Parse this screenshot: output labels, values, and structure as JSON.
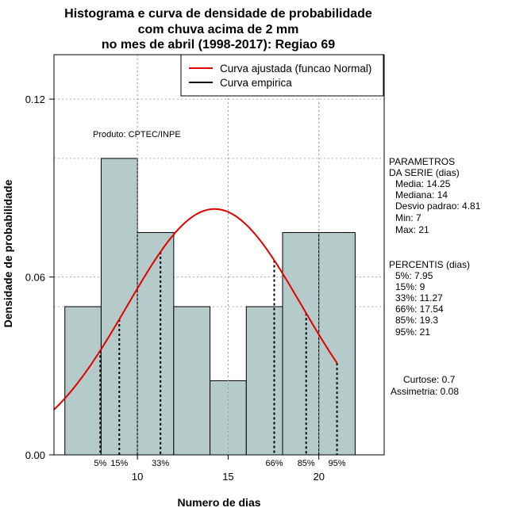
{
  "chart_data": {
    "type": "bar",
    "title_lines": [
      "Histograma e curva de densidade de probabilidade",
      "com chuva acima de 2 mm",
      "no mes de abril (1998-2017): Regiao 69"
    ],
    "xlabel": "Numero de dias",
    "ylabel": "Densidade de probabilidade",
    "xlim": [
      5.4,
      23.6
    ],
    "ylim": [
      0,
      0.135
    ],
    "x_ticks": [
      10,
      15,
      20
    ],
    "y_ticks": [
      0.0,
      0.06,
      0.12
    ],
    "y_tick_labels": [
      "0.00",
      "0.06",
      "0.12"
    ],
    "grid": true,
    "bar_fill": "#b5cbca",
    "bins": [
      {
        "x0": 6,
        "x1": 8,
        "density": 0.05
      },
      {
        "x0": 8,
        "x1": 10,
        "density": 0.1
      },
      {
        "x0": 10,
        "x1": 12,
        "density": 0.075
      },
      {
        "x0": 12,
        "x1": 14,
        "density": 0.05
      },
      {
        "x0": 14,
        "x1": 16,
        "density": 0.025
      },
      {
        "x0": 16,
        "x1": 18,
        "density": 0.05
      },
      {
        "x0": 18,
        "x1": 20,
        "density": 0.075
      },
      {
        "x0": 20,
        "x1": 22,
        "density": 0.075
      }
    ],
    "normal_curve": {
      "mean": 14.25,
      "sd": 4.81,
      "color": "#e00000"
    },
    "percentile_lines": [
      {
        "label": "5%",
        "x": 7.95
      },
      {
        "label": "15%",
        "x": 9
      },
      {
        "label": "33%",
        "x": 11.27
      },
      {
        "label": "66%",
        "x": 17.54
      },
      {
        "label": "85%",
        "x": 19.3
      },
      {
        "label": "95%",
        "x": 21
      }
    ],
    "legend": {
      "position": "top-right",
      "entries": [
        {
          "label": "Curva ajustada (funcao Normal)",
          "color": "#e00000"
        },
        {
          "label": "Curva empirica",
          "color": "#000000"
        }
      ]
    },
    "annotation": "Produto: CPTEC/INPE",
    "side_panel": {
      "params_title": [
        "PARAMETROS",
        "DA SERIE (dias)"
      ],
      "params": [
        "Media: 14.25",
        "Mediana: 14",
        "Desvio padrao: 4.81",
        "Min: 7",
        "Max: 21"
      ],
      "percentis_title": "PERCENTIS (dias)",
      "percentis": [
        "5%: 7.95",
        "15%: 9",
        "33%: 11.27",
        "66%: 17.54",
        "85%: 19.3",
        "95%: 21"
      ],
      "stats": [
        "Curtose: 0.7",
        "Assimetria: 0.08"
      ]
    }
  }
}
